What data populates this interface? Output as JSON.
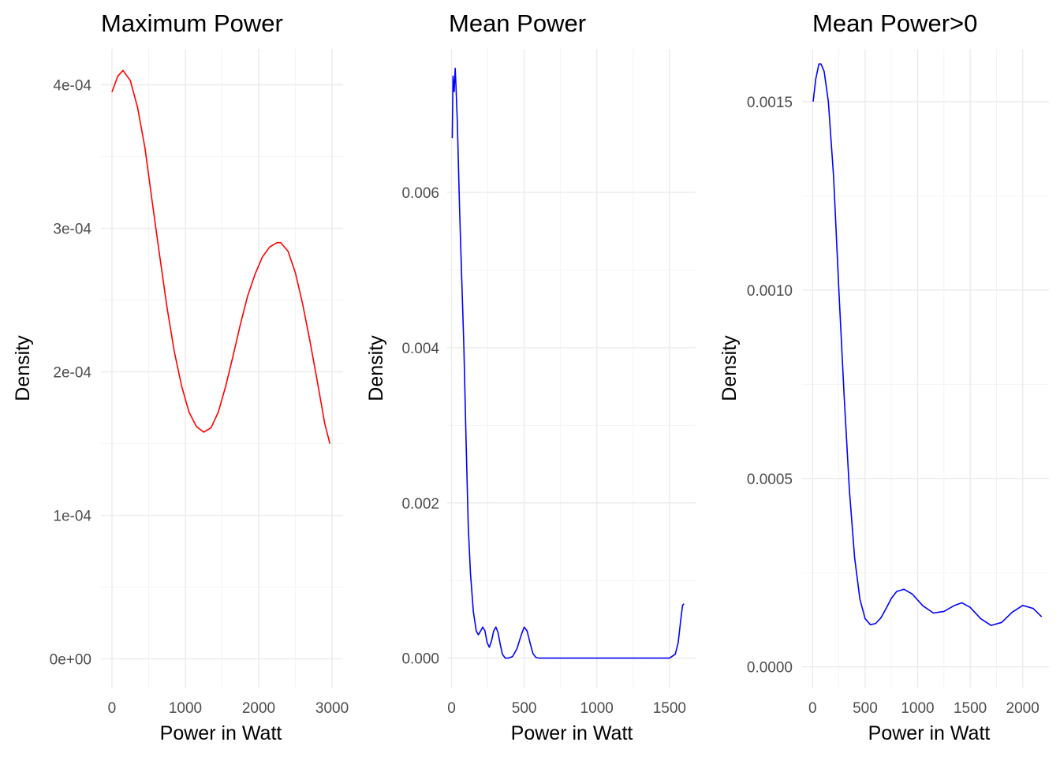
{
  "chart_data": [
    {
      "type": "line",
      "title": "Maximum Power",
      "xlabel": "Power in Watt",
      "ylabel": "Density",
      "xlim": [
        -150,
        3150
      ],
      "ylim": [
        -2e-05,
        0.000425
      ],
      "x_ticks": [
        0,
        1000,
        2000,
        3000
      ],
      "x_tick_labels": [
        "0",
        "1000",
        "2000",
        "3000"
      ],
      "y_ticks": [
        0,
        0.0001,
        0.0002,
        0.0003,
        0.0004
      ],
      "y_tick_labels": [
        "0e+00",
        "1e-04",
        "2e-04",
        "3e-04",
        "4e-04"
      ],
      "grid": true,
      "series": [
        {
          "color": "#ff0000",
          "x": [
            0,
            80,
            150,
            250,
            350,
            450,
            550,
            650,
            750,
            850,
            950,
            1050,
            1150,
            1250,
            1350,
            1450,
            1550,
            1650,
            1750,
            1850,
            1950,
            2050,
            2150,
            2250,
            2300,
            2400,
            2500,
            2600,
            2700,
            2800,
            2900,
            2970
          ],
          "y": [
            0.000395,
            0.000406,
            0.00041,
            0.000403,
            0.000384,
            0.000356,
            0.000318,
            0.000281,
            0.000245,
            0.000214,
            0.00019,
            0.000172,
            0.000162,
            0.000158,
            0.000161,
            0.000172,
            0.00019,
            0.000211,
            0.000233,
            0.000253,
            0.000268,
            0.00028,
            0.000287,
            0.00029,
            0.00029,
            0.000284,
            0.000269,
            0.000247,
            0.000221,
            0.000193,
            0.000164,
            0.00015
          ]
        }
      ]
    },
    {
      "type": "line",
      "title": "Mean Power",
      "xlabel": "Power in Watt",
      "ylabel": "Density",
      "xlim": [
        -30,
        1680
      ],
      "ylim": [
        -0.00038,
        0.00785
      ],
      "x_ticks": [
        0,
        500,
        1000,
        1500
      ],
      "x_tick_labels": [
        "0",
        "500",
        "1000",
        "1500"
      ],
      "y_ticks": [
        0,
        0.002,
        0.004,
        0.006
      ],
      "y_tick_labels": [
        "0.000",
        "0.002",
        "0.004",
        "0.006"
      ],
      "grid": true,
      "series": [
        {
          "color": "#0000ff",
          "x": [
            5,
            10,
            18,
            25,
            30,
            40,
            55,
            70,
            85,
            100,
            115,
            130,
            150,
            170,
            185,
            200,
            215,
            230,
            245,
            260,
            275,
            290,
            305,
            320,
            335,
            350,
            370,
            390,
            420,
            450,
            480,
            500,
            520,
            540,
            560,
            580,
            600,
            700,
            900,
            1100,
            1300,
            1500,
            1540,
            1560,
            1575,
            1590,
            1600
          ],
          "y": [
            0.0067,
            0.0075,
            0.0073,
            0.0076,
            0.0074,
            0.0069,
            0.0058,
            0.0049,
            0.004,
            0.0028,
            0.0017,
            0.0011,
            0.0006,
            0.00035,
            0.0003,
            0.00035,
            0.0004,
            0.00035,
            0.0002,
            0.00014,
            0.00022,
            0.00035,
            0.0004,
            0.00033,
            0.00018,
            5e-05,
            0.0,
            0.0,
            2e-05,
            0.00012,
            0.0003,
            0.0004,
            0.00035,
            0.0002,
            6e-05,
            1e-05,
            0.0,
            0.0,
            0.0,
            0.0,
            0.0,
            0.0,
            5e-05,
            0.0002,
            0.00045,
            0.00068,
            0.0007
          ]
        }
      ]
    },
    {
      "type": "line",
      "title": "Mean Power>0",
      "xlabel": "Power in Watt",
      "ylabel": "Density",
      "xlim": [
        -100,
        2250
      ],
      "ylim": [
        -5.5e-05,
        0.00164
      ],
      "x_ticks": [
        0,
        500,
        1000,
        1500,
        2000
      ],
      "x_tick_labels": [
        "0",
        "500",
        "1000",
        "1500",
        "2000"
      ],
      "y_ticks": [
        0,
        0.0005,
        0.001,
        0.0015
      ],
      "y_tick_labels": [
        "0.0000",
        "0.0005",
        "0.0010",
        "0.0015"
      ],
      "grid": true,
      "series": [
        {
          "color": "#0000ff",
          "x": [
            5,
            30,
            60,
            80,
            110,
            150,
            200,
            250,
            300,
            350,
            400,
            450,
            500,
            550,
            600,
            650,
            700,
            750,
            800,
            870,
            950,
            1050,
            1150,
            1250,
            1350,
            1420,
            1500,
            1600,
            1700,
            1800,
            1900,
            2000,
            2100,
            2180
          ],
          "y": [
            0.0015,
            0.00156,
            0.0016,
            0.0016,
            0.00158,
            0.0015,
            0.0013,
            0.001,
            0.00072,
            0.00047,
            0.00029,
            0.00018,
            0.000128,
            0.000112,
            0.000115,
            0.00013,
            0.000155,
            0.000182,
            0.0002,
            0.000206,
            0.000193,
            0.000162,
            0.000143,
            0.000147,
            0.000163,
            0.00017,
            0.000158,
            0.000128,
            0.00011,
            0.000118,
            0.000145,
            0.000163,
            0.000155,
            0.000133
          ]
        }
      ]
    }
  ]
}
